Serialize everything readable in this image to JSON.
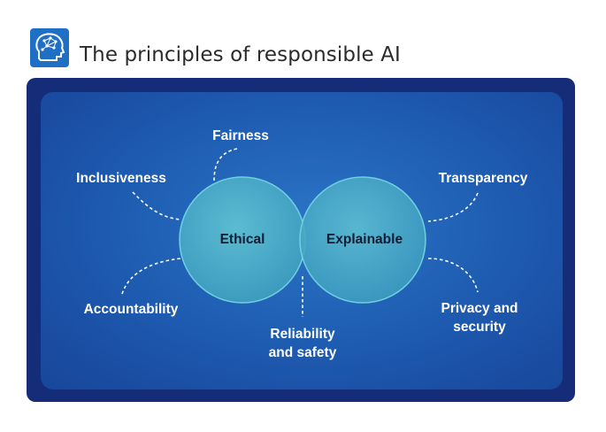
{
  "header": {
    "title": "The principles of responsible AI",
    "logo_icon": "brain-head-icon",
    "accent_color": "#1f5fb4"
  },
  "diagram": {
    "circles": [
      {
        "label": "Ethical"
      },
      {
        "label": "Explainable"
      }
    ],
    "principles": {
      "fairness": "Fairness",
      "inclusiveness": "Inclusiveness",
      "accountability": "Accountability",
      "reliability": "Reliability\nand safety",
      "transparency": "Transparency",
      "privacy": "Privacy and\nsecurity"
    },
    "colors": {
      "panel_dark": "#152d78",
      "panel_light": "#2b74c6",
      "circle_fill": "#4fb3c9"
    }
  }
}
